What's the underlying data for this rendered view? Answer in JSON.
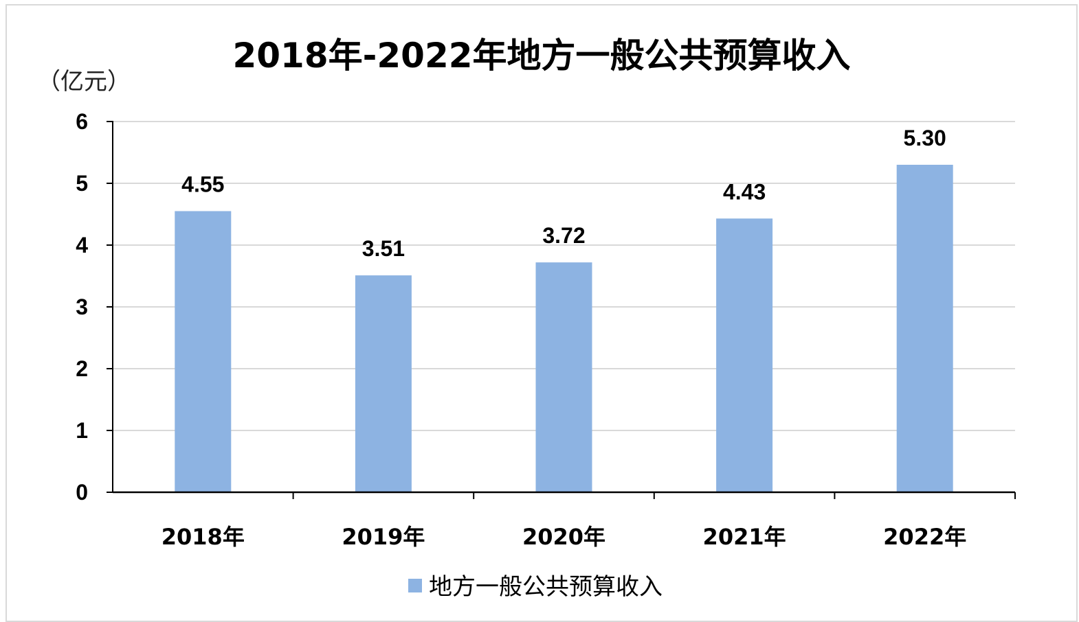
{
  "chart_data": {
    "type": "bar",
    "title": "2018年-2022年地方一般公共预算收入",
    "unit_label": "（亿元）",
    "categories": [
      "2018年",
      "2019年",
      "2020年",
      "2021年",
      "2022年"
    ],
    "series": [
      {
        "name": "地方一般公共预算收入",
        "values": [
          4.55,
          3.51,
          3.72,
          4.43,
          5.3
        ],
        "value_labels": [
          "4.55",
          "3.51",
          "3.72",
          "4.43",
          "5.30"
        ],
        "color": "#8DB3E2"
      }
    ],
    "ylim": [
      0,
      6
    ],
    "yticks": [
      "0",
      "1",
      "2",
      "3",
      "4",
      "5",
      "6"
    ],
    "grid": true,
    "legend_position": "bottom"
  }
}
